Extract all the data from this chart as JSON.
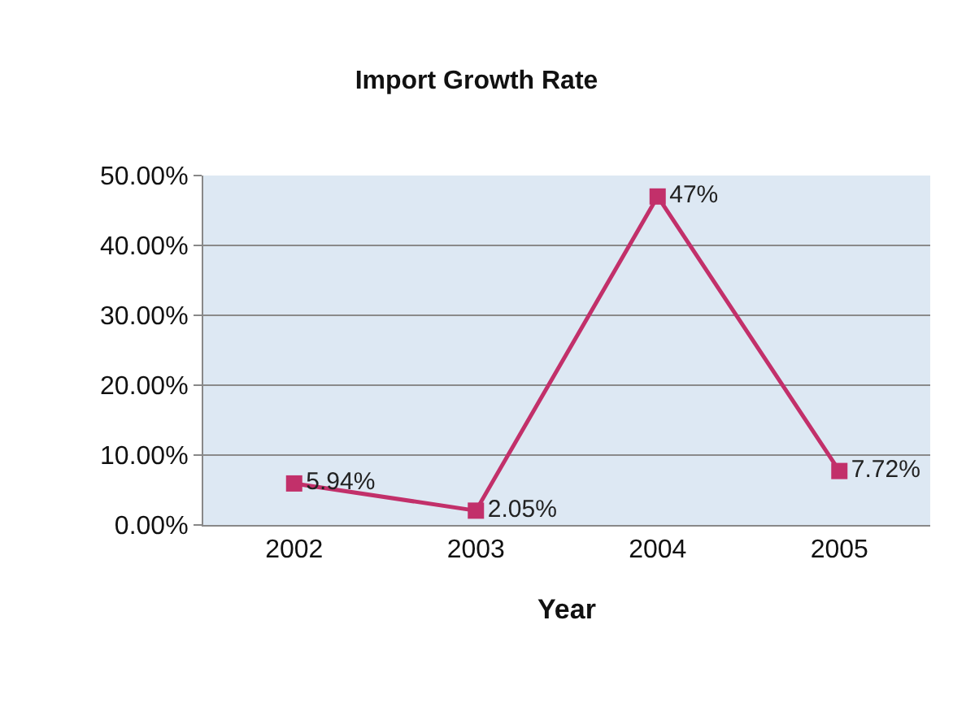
{
  "chart_data": {
    "type": "line",
    "title": "Import Growth Rate",
    "xlabel": "Year",
    "categories": [
      "2002",
      "2003",
      "2004",
      "2005"
    ],
    "series": [
      {
        "color": "#c2306a",
        "values": [
          5.94,
          2.05,
          47,
          7.72
        ],
        "value_labels": [
          "5.94%",
          "2.05%",
          "47%",
          "7.72%"
        ]
      }
    ],
    "ylim": [
      0,
      50
    ],
    "yticks": [
      {
        "value": 0,
        "label": "0.00%"
      },
      {
        "value": 10,
        "label": "10.00%"
      },
      {
        "value": 20,
        "label": "20.00%"
      },
      {
        "value": 30,
        "label": "30.00%"
      },
      {
        "value": 40,
        "label": "40.00%"
      },
      {
        "value": 50,
        "label": "50.00%"
      }
    ],
    "grid": "y",
    "marker": "square",
    "line_style": "solid"
  }
}
